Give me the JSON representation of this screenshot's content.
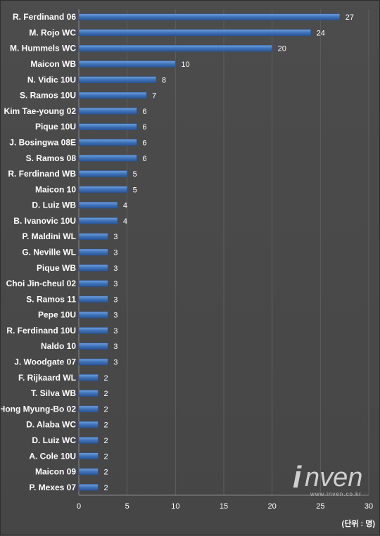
{
  "chart_data": {
    "type": "bar",
    "orientation": "horizontal",
    "categories": [
      "R. Ferdinand 06",
      "M. Rojo WC",
      "M. Hummels WC",
      "Maicon WB",
      "N. Vidic 10U",
      "S. Ramos 10U",
      "Kim Tae-young 02",
      "Pique 10U",
      "J. Bosingwa 08E",
      "S. Ramos 08",
      "R. Ferdinand WB",
      "Maicon 10",
      "D. Luiz WB",
      "B. Ivanovic 10U",
      "P. Maldini WL",
      "G. Neville WL",
      "Pique WB",
      "Choi Jin-cheul 02",
      "S. Ramos 11",
      "Pepe 10U",
      "R. Ferdinand 10U",
      "Naldo 10",
      "J. Woodgate 07",
      "F. Rijkaard WL",
      "T. Silva WB",
      "Hong Myung-Bo 02",
      "D. Alaba WC",
      "D. Luiz WC",
      "A. Cole 10U",
      "Maicon 09",
      "P. Mexes 07"
    ],
    "values": [
      27,
      24,
      20,
      10,
      8,
      7,
      6,
      6,
      6,
      6,
      5,
      5,
      4,
      4,
      3,
      3,
      3,
      3,
      3,
      3,
      3,
      3,
      3,
      2,
      2,
      2,
      2,
      2,
      2,
      2,
      2
    ],
    "xlim": [
      0,
      30
    ],
    "xticks": [
      0,
      5,
      10,
      15,
      20,
      25,
      30
    ],
    "grid": true,
    "bar_color": "#3f72b8",
    "unit": "(단위 : 명)",
    "title": "",
    "xlabel": "",
    "ylabel": ""
  },
  "watermark": {
    "letter": "i",
    "word": "nven",
    "url": "www.inven.co.kr"
  }
}
